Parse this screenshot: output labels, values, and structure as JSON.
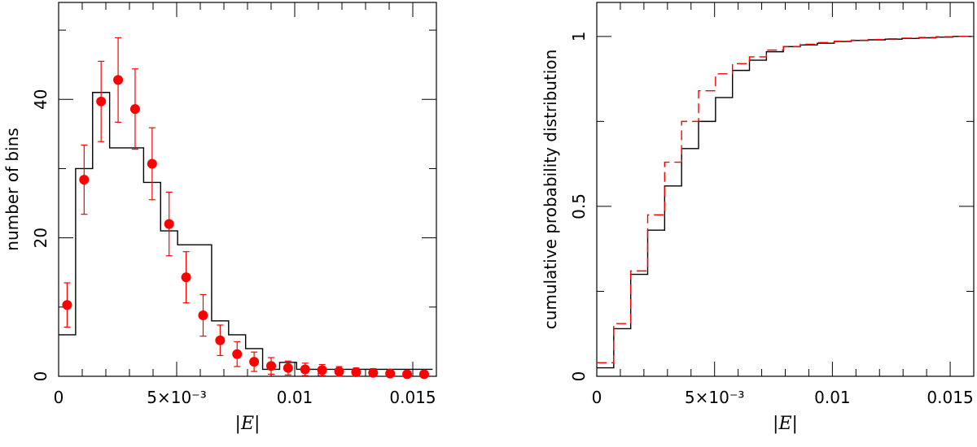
{
  "colors": {
    "histogram_line": "#000000",
    "red_series": "#ff0000",
    "background": "#ffffff"
  },
  "chart_data": [
    {
      "type": "bar",
      "title": "",
      "xlabel": "|E|",
      "ylabel": "number of bins",
      "xlim": [
        0,
        0.016
      ],
      "ylim": [
        0,
        54
      ],
      "x_ticks": [
        {
          "value": 0,
          "label": "0"
        },
        {
          "value": 0.005,
          "label": "5×10⁻³"
        },
        {
          "value": 0.01,
          "label": "0.01"
        },
        {
          "value": 0.015,
          "label": "0.015"
        }
      ],
      "y_ticks": [
        {
          "value": 0,
          "label": "0"
        },
        {
          "value": 20,
          "label": "20"
        },
        {
          "value": 40,
          "label": "40"
        }
      ],
      "grid": false,
      "series": [
        {
          "kind": "step-histogram",
          "color": "#000000",
          "bin_edges": [
            0,
            0.00072,
            0.00144,
            0.00216,
            0.00288,
            0.0036,
            0.00432,
            0.00504,
            0.00576,
            0.00648,
            0.0072,
            0.00792,
            0.00864,
            0.00936,
            0.01008,
            0.0108,
            0.01152,
            0.01224,
            0.01296,
            0.01368,
            0.0144,
            0.01512,
            0.01584
          ],
          "counts": [
            6,
            30,
            41,
            33,
            33,
            28,
            21,
            19,
            19,
            8,
            6,
            4,
            1,
            2,
            1,
            1,
            1,
            1,
            1,
            1,
            1,
            1
          ]
        },
        {
          "kind": "points-with-errors",
          "color": "#ff0000",
          "x": [
            0.00036,
            0.00108,
            0.0018,
            0.00252,
            0.00324,
            0.00396,
            0.00468,
            0.0054,
            0.00612,
            0.00684,
            0.00756,
            0.00828,
            0.009,
            0.00972,
            0.01044,
            0.01116,
            0.01188,
            0.0126,
            0.01332,
            0.01404,
            0.01476,
            0.01548
          ],
          "y": [
            10.3,
            28.4,
            39.7,
            42.8,
            38.6,
            30.7,
            22.0,
            14.3,
            8.8,
            5.2,
            3.2,
            2.1,
            1.5,
            1.2,
            1.0,
            0.9,
            0.7,
            0.6,
            0.5,
            0.4,
            0.3,
            0.3
          ],
          "err": [
            3.2,
            5.0,
            5.8,
            6.1,
            5.8,
            5.2,
            4.6,
            3.7,
            3.0,
            2.2,
            1.8,
            1.4,
            1.2,
            1.0,
            0.9,
            0.8,
            0.7,
            0.6,
            0.6,
            0.5,
            0.4,
            0.4
          ]
        }
      ]
    },
    {
      "type": "line",
      "title": "",
      "xlabel": "|E|",
      "ylabel": "cumulative probability distribution",
      "xlim": [
        0,
        0.016
      ],
      "ylim": [
        0,
        1.1
      ],
      "x_ticks": [
        {
          "value": 0,
          "label": "0"
        },
        {
          "value": 0.005,
          "label": "5×10⁻³"
        },
        {
          "value": 0.01,
          "label": "0.01"
        },
        {
          "value": 0.015,
          "label": "0.015"
        }
      ],
      "y_ticks": [
        {
          "value": 0,
          "label": "0"
        },
        {
          "value": 0.5,
          "label": "0.5"
        },
        {
          "value": 1,
          "label": "1"
        }
      ],
      "grid": false,
      "series": [
        {
          "kind": "step-cdf",
          "style": "solid",
          "color": "#000000",
          "bin_edges": [
            0,
            0.00072,
            0.00144,
            0.00216,
            0.00288,
            0.0036,
            0.00432,
            0.00504,
            0.00576,
            0.00648,
            0.0072,
            0.00792,
            0.00864,
            0.00936,
            0.01008,
            0.0108,
            0.01152,
            0.01224,
            0.01296,
            0.01368,
            0.0144,
            0.01512,
            0.0159
          ],
          "values": [
            0.025,
            0.14,
            0.3,
            0.43,
            0.56,
            0.67,
            0.75,
            0.82,
            0.9,
            0.93,
            0.955,
            0.97,
            0.975,
            0.98,
            0.985,
            0.988,
            0.99,
            0.992,
            0.994,
            0.996,
            0.998,
            1.0
          ]
        },
        {
          "kind": "step-cdf",
          "style": "dashed",
          "color": "#ff0000",
          "bin_edges": [
            0,
            0.00072,
            0.00144,
            0.00216,
            0.00288,
            0.0036,
            0.00432,
            0.00504,
            0.00576,
            0.00648,
            0.0072,
            0.00792,
            0.00864,
            0.00936,
            0.01008,
            0.0108,
            0.01152,
            0.01224,
            0.01296,
            0.01368,
            0.0144,
            0.01512,
            0.0159
          ],
          "values": [
            0.04,
            0.155,
            0.31,
            0.475,
            0.63,
            0.75,
            0.84,
            0.89,
            0.92,
            0.94,
            0.96,
            0.97,
            0.977,
            0.982,
            0.986,
            0.989,
            0.991,
            0.993,
            0.995,
            0.997,
            0.999,
            1.0
          ]
        }
      ]
    }
  ]
}
